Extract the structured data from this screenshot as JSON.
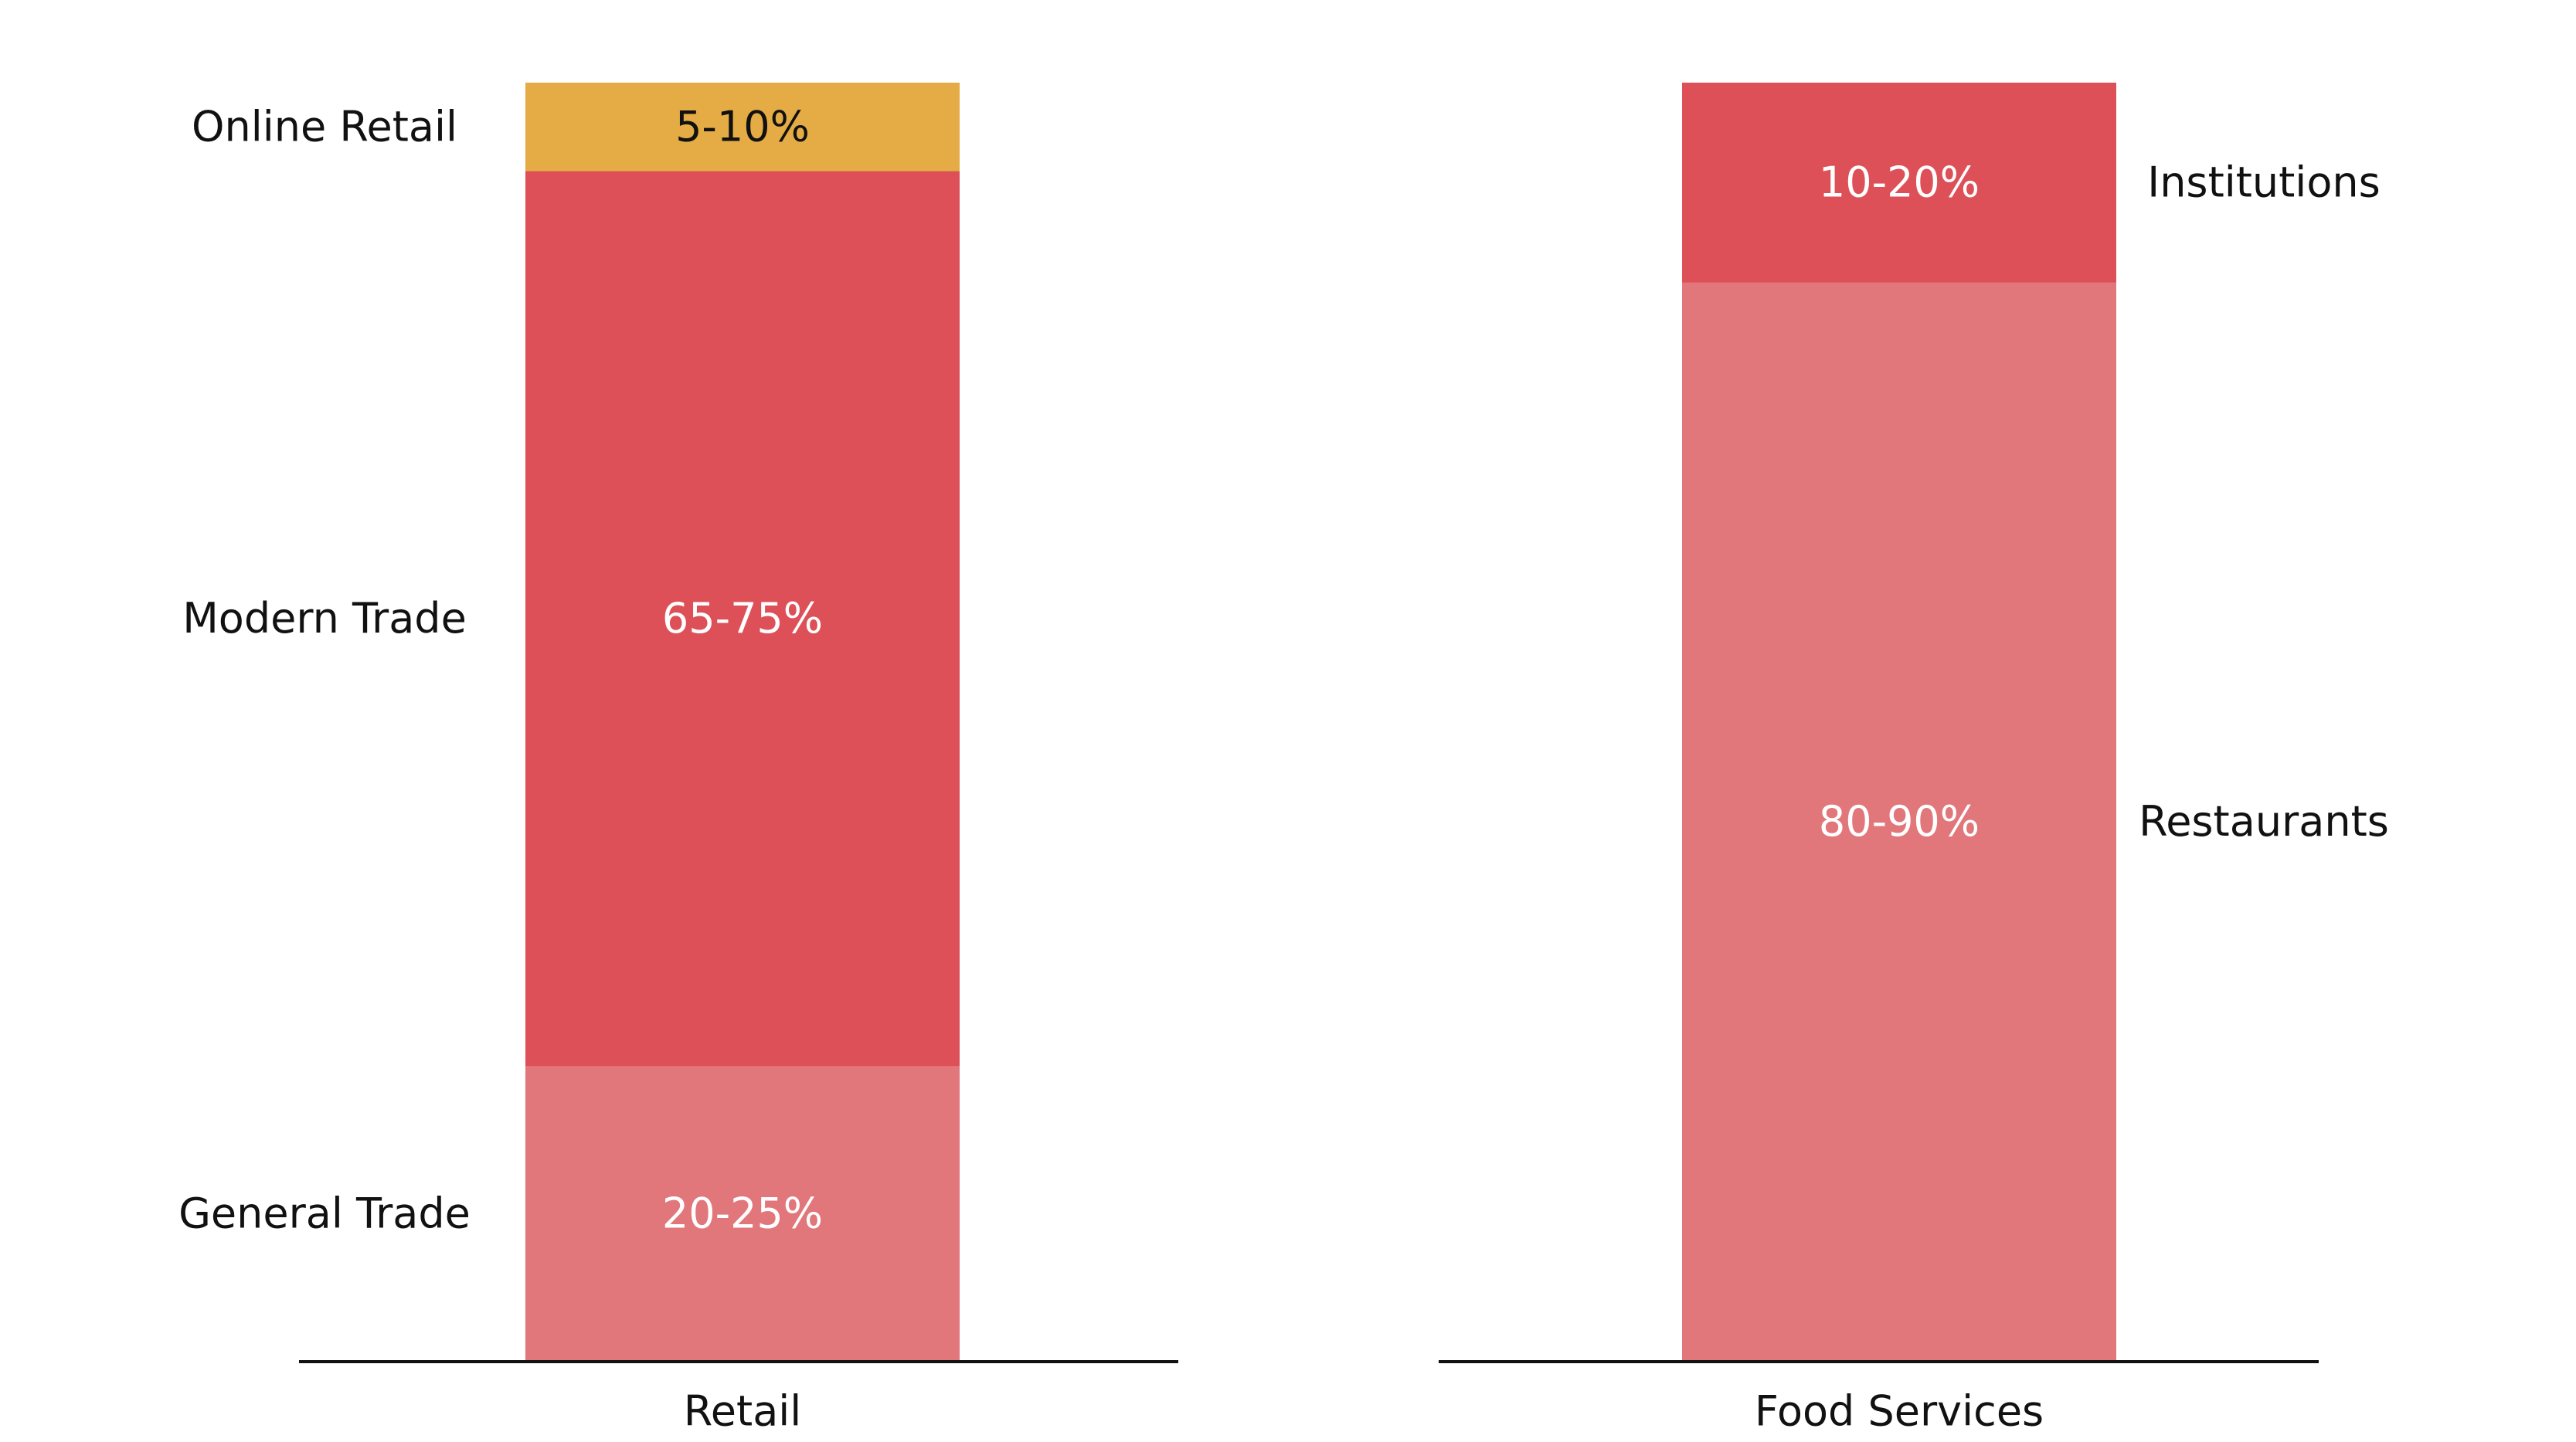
{
  "chart_data": {
    "type": "bar",
    "stacked": true,
    "categories": [
      "Retail",
      "Food Services"
    ],
    "series": [
      {
        "category": "Retail",
        "segments": [
          {
            "label": "General Trade",
            "value_label": "20-25%",
            "value": 0.231,
            "color": "#E1777A",
            "text_color": "#FFFFFF"
          },
          {
            "label": "Modern Trade",
            "value_label": "65-75%",
            "value": 0.7,
            "color": "#DD5057",
            "text_color": "#FFFFFF"
          },
          {
            "label": "Online Retail",
            "value_label": "5-10%",
            "value": 0.069,
            "color": "#E5AC45",
            "text_color": "#111111"
          }
        ]
      },
      {
        "category": "Food Services",
        "segments": [
          {
            "label": "Restaurants",
            "value_label": "80-90%",
            "value": 0.844,
            "color": "#E1777A",
            "text_color": "#FFFFFF"
          },
          {
            "label": "Institutions",
            "value_label": "10-20%",
            "value": 0.156,
            "color": "#DD5057",
            "text_color": "#FFFFFF"
          }
        ]
      }
    ],
    "ylim": [
      0,
      1
    ],
    "grid": false,
    "colors": {
      "baseline": "#111111",
      "label_text": "#111111"
    }
  }
}
